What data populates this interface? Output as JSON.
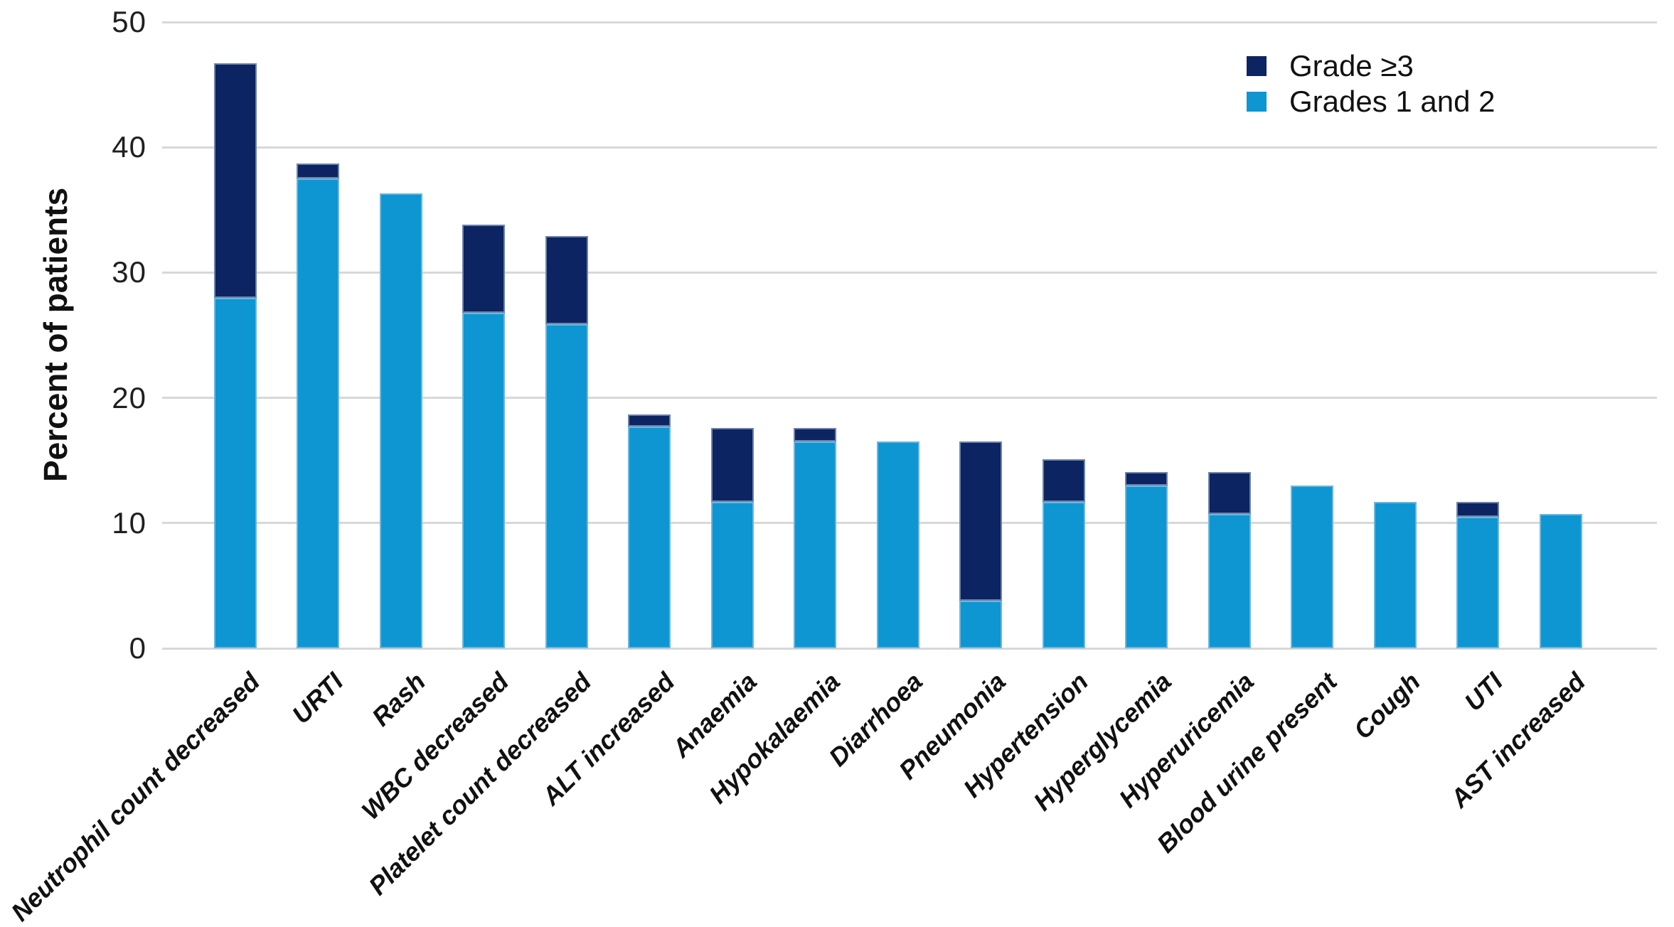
{
  "chart_data": {
    "type": "bar",
    "stacked": true,
    "title": "",
    "xlabel": "",
    "ylabel": "Percent of patients",
    "ylim": [
      0,
      50
    ],
    "yticks": [
      0,
      10,
      20,
      30,
      40,
      50
    ],
    "grid": true,
    "legend_position": "top-right",
    "categories": [
      "Neutrophil count decreased",
      "URTI",
      "Rash",
      "WBC decreased",
      "Platelet count decreased",
      "ALT increased",
      "Anaemia",
      "Hypokalaemia",
      "Diarrhoea",
      "Pneumonia",
      "Hypertension",
      "Hyperglycemia",
      "Hyperuricemia",
      "Blood urine present",
      "Cough",
      "UTI",
      "AST increased"
    ],
    "series": [
      {
        "name": "Grade ≥3",
        "color": "#0c2461",
        "values": [
          18.7,
          1.2,
          0,
          7.0,
          7.0,
          1.0,
          5.9,
          1.1,
          0,
          12.7,
          3.4,
          1.1,
          3.4,
          0,
          0,
          1.2,
          0
        ]
      },
      {
        "name": "Grades 1 and 2",
        "color": "#0d96d2",
        "values": [
          28.0,
          37.5,
          36.3,
          26.8,
          25.9,
          17.7,
          11.7,
          16.5,
          16.5,
          3.8,
          11.7,
          13.0,
          10.7,
          13.0,
          11.7,
          10.5,
          10.7
        ]
      }
    ],
    "totals": [
      46.7,
      38.7,
      36.3,
      33.8,
      32.9,
      18.7,
      17.6,
      17.6,
      16.5,
      16.5,
      15.1,
      14.1,
      14.1,
      13.0,
      11.7,
      11.7,
      10.7
    ]
  },
  "legend": {
    "items": [
      {
        "label": "Grade ≥3",
        "color": "#0c2461"
      },
      {
        "label": "Grades 1 and 2",
        "color": "#0d96d2"
      }
    ]
  },
  "style": {
    "gridline_color": "#d8d8d8",
    "text_color": "#111111",
    "background": "#ffffff"
  }
}
